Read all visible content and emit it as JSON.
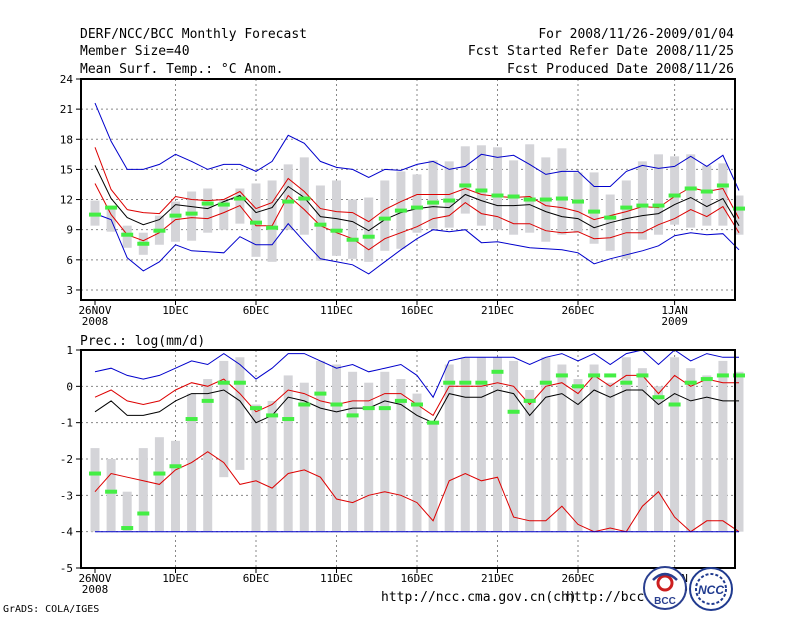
{
  "header": {
    "title": "DERF/NCC/BCC Monthly Forecast",
    "member_size": "Member Size=40",
    "variable": "Mean Surf. Temp.: °C Anom.",
    "period": "For 2008/11/26-2009/01/04",
    "started": "Fcst Started Refer Date 2008/11/25",
    "produced": "Fcst Produced Date 2008/11/26"
  },
  "footer": {
    "grads": "GrADS: COLA/IGES",
    "url1": "http://ncc.cma.gov.cn(ch)",
    "url2": "http://bcc.",
    "logo_bcc": "BCC",
    "logo_ncc": "NCC"
  },
  "colors": {
    "box": "#d4d4d8",
    "median": "#44ee44",
    "mean": "#000000",
    "inner": "#dd0000",
    "outer": "#0000cc",
    "grid": "#888888"
  },
  "chart_data": [
    {
      "type": "box-plot-time-series",
      "title": "Mean Surf. Temp.: °C Anom.",
      "ylim": [
        2,
        24
      ],
      "yticks": [
        3,
        6,
        9,
        12,
        15,
        18,
        21,
        24
      ],
      "x": [
        0,
        39
      ],
      "xticks": [
        {
          "i": 0,
          "label": "26NOV",
          "sub": "2008"
        },
        {
          "i": 5,
          "label": "1DEC",
          "sub": ""
        },
        {
          "i": 10,
          "label": "6DEC",
          "sub": ""
        },
        {
          "i": 15,
          "label": "11DEC",
          "sub": ""
        },
        {
          "i": 20,
          "label": "16DEC",
          "sub": ""
        },
        {
          "i": 25,
          "label": "21DEC",
          "sub": ""
        },
        {
          "i": 30,
          "label": "26DEC",
          "sub": ""
        },
        {
          "i": 36,
          "label": "1JAN",
          "sub": "2009"
        }
      ],
      "series": [
        {
          "name": "outer_max",
          "values": [
            21.6,
            17.8,
            15.0,
            15.0,
            15.5,
            16.5,
            15.8,
            15.0,
            15.5,
            15.5,
            14.8,
            15.8,
            18.4,
            17.6,
            15.8,
            15.2,
            15.0,
            14.2,
            15.0,
            14.9,
            15.5,
            15.8,
            15.0,
            15.3,
            16.5,
            16.2,
            16.4,
            15.5,
            14.5,
            14.8,
            14.8,
            13.3,
            13.3,
            14.8,
            15.4,
            15.1,
            15.3,
            16.3,
            15.3,
            16.4,
            12.9
          ]
        },
        {
          "name": "inner_max",
          "values": [
            17.2,
            13.0,
            11.0,
            10.7,
            10.6,
            12.3,
            12.0,
            11.9,
            12.0,
            12.8,
            11.1,
            11.7,
            14.1,
            12.8,
            11.1,
            10.8,
            10.7,
            9.8,
            11.0,
            11.8,
            12.5,
            12.5,
            12.5,
            13.1,
            12.5,
            12.3,
            12.2,
            12.3,
            11.4,
            11.2,
            10.8,
            10.0,
            10.4,
            10.8,
            11.3,
            11.2,
            12.3,
            13.2,
            12.8,
            13.1,
            10.1
          ]
        },
        {
          "name": "mean",
          "values": [
            15.4,
            12.1,
            10.2,
            9.5,
            10.0,
            11.5,
            11.3,
            11.1,
            11.8,
            12.4,
            10.7,
            11.2,
            13.3,
            12.2,
            10.3,
            10.1,
            9.8,
            8.9,
            10.0,
            10.7,
            11.1,
            11.3,
            11.2,
            12.5,
            11.9,
            11.4,
            11.4,
            11.5,
            10.8,
            10.3,
            10.1,
            9.2,
            9.7,
            10.1,
            10.4,
            10.6,
            11.5,
            12.2,
            11.3,
            12.1,
            9.4
          ]
        },
        {
          "name": "inner_min",
          "values": [
            13.6,
            10.5,
            8.5,
            7.9,
            8.7,
            10.0,
            10.2,
            10.1,
            10.7,
            11.4,
            9.4,
            9.4,
            12.4,
            11.0,
            9.4,
            8.7,
            8.1,
            7.0,
            8.1,
            8.7,
            9.3,
            10.1,
            10.4,
            11.7,
            10.6,
            10.3,
            9.6,
            9.6,
            8.9,
            8.7,
            8.8,
            8.1,
            8.2,
            8.7,
            8.7,
            9.5,
            10.1,
            11.0,
            10.3,
            11.3,
            8.7
          ]
        },
        {
          "name": "outer_min",
          "values": [
            10.6,
            10.0,
            6.2,
            4.9,
            5.8,
            7.5,
            6.9,
            6.8,
            6.7,
            8.3,
            7.5,
            7.5,
            9.6,
            7.8,
            6.1,
            5.8,
            5.5,
            4.6,
            5.8,
            7.0,
            8.1,
            9.0,
            8.8,
            9.0,
            7.7,
            7.8,
            7.5,
            7.2,
            7.1,
            7.0,
            6.7,
            5.6,
            6.1,
            6.5,
            6.9,
            7.4,
            8.4,
            8.7,
            8.5,
            8.6,
            7.0
          ]
        }
      ],
      "boxes": [
        [
          9.4,
          11.9,
          10.5
        ],
        [
          8.8,
          11.1,
          11.2
        ],
        [
          7.2,
          9.4,
          8.5
        ],
        [
          6.5,
          8.7,
          7.6
        ],
        [
          7.5,
          10.4,
          8.9
        ],
        [
          7.8,
          11.8,
          10.4
        ],
        [
          7.9,
          12.8,
          10.6
        ],
        [
          8.7,
          13.1,
          11.6
        ],
        [
          9.0,
          12.0,
          11.5
        ],
        [
          9.6,
          13.1,
          12.1
        ],
        [
          6.3,
          13.6,
          9.7
        ],
        [
          5.8,
          13.9,
          9.2
        ],
        [
          9.0,
          15.5,
          11.8
        ],
        [
          8.5,
          16.2,
          12.1
        ],
        [
          5.9,
          13.4,
          9.5
        ],
        [
          6.4,
          13.9,
          8.9
        ],
        [
          6.1,
          12.0,
          8.0
        ],
        [
          5.8,
          12.2,
          8.3
        ],
        [
          6.9,
          13.9,
          10.1
        ],
        [
          7.1,
          14.8,
          10.9
        ],
        [
          8.7,
          14.5,
          11.2
        ],
        [
          9.1,
          15.9,
          11.7
        ],
        [
          9.2,
          15.8,
          11.9
        ],
        [
          10.6,
          17.3,
          13.4
        ],
        [
          9.4,
          17.4,
          12.9
        ],
        [
          9.0,
          17.2,
          12.4
        ],
        [
          8.5,
          15.9,
          12.3
        ],
        [
          8.7,
          17.5,
          12.0
        ],
        [
          7.8,
          16.2,
          12.0
        ],
        [
          8.5,
          17.1,
          12.1
        ],
        [
          8.7,
          14.7,
          11.8
        ],
        [
          7.6,
          14.7,
          10.8
        ],
        [
          6.9,
          12.5,
          10.2
        ],
        [
          6.1,
          13.9,
          11.2
        ],
        [
          8.0,
          15.8,
          11.4
        ],
        [
          8.5,
          16.5,
          11.4
        ],
        [
          9.5,
          16.3,
          12.4
        ],
        [
          9.2,
          16.5,
          13.1
        ],
        [
          9.4,
          15.4,
          12.8
        ],
        [
          9.4,
          15.6,
          13.4
        ],
        [
          8.5,
          12.4,
          11.1
        ]
      ]
    },
    {
      "type": "box-plot-time-series",
      "title": "Prec.: log(mm/d)",
      "ylim": [
        -5,
        1
      ],
      "yticks": [
        -5,
        -4,
        -3,
        -2,
        -1,
        0,
        1
      ],
      "xticks": [
        {
          "i": 0,
          "label": "26NOV",
          "sub": "2008"
        },
        {
          "i": 5,
          "label": "1DEC",
          "sub": ""
        },
        {
          "i": 10,
          "label": "6DEC",
          "sub": ""
        },
        {
          "i": 15,
          "label": "11DEC",
          "sub": ""
        },
        {
          "i": 20,
          "label": "16DEC",
          "sub": ""
        },
        {
          "i": 25,
          "label": "21DEC",
          "sub": ""
        },
        {
          "i": 30,
          "label": "26DEC",
          "sub": ""
        },
        {
          "i": 36,
          "label": "1JAN",
          "sub": "2009"
        }
      ],
      "series": [
        {
          "name": "outer_max",
          "values": [
            0.4,
            0.5,
            0.3,
            0.2,
            0.3,
            0.5,
            0.7,
            0.6,
            0.9,
            0.6,
            0.2,
            0.5,
            0.9,
            0.9,
            0.7,
            0.5,
            0.6,
            0.4,
            0.5,
            0.6,
            0.3,
            -0.3,
            0.7,
            0.8,
            0.8,
            0.8,
            0.8,
            0.6,
            0.8,
            0.9,
            0.7,
            0.9,
            0.6,
            0.9,
            1.0,
            0.6,
            1.0,
            0.7,
            0.9,
            0.8,
            0.8
          ]
        },
        {
          "name": "inner_max",
          "values": [
            -0.3,
            -0.1,
            -0.4,
            -0.5,
            -0.4,
            -0.1,
            0.1,
            0.0,
            0.2,
            -0.2,
            -0.7,
            -0.5,
            -0.1,
            -0.2,
            -0.4,
            -0.5,
            -0.4,
            -0.4,
            -0.2,
            -0.2,
            -0.5,
            -0.8,
            0.0,
            0.0,
            0.0,
            0.1,
            0.0,
            -0.5,
            0.0,
            0.1,
            -0.2,
            0.3,
            0.0,
            0.3,
            0.3,
            -0.2,
            0.3,
            0.0,
            0.2,
            0.1,
            0.1
          ]
        },
        {
          "name": "mean",
          "values": [
            -0.7,
            -0.4,
            -0.8,
            -0.8,
            -0.7,
            -0.4,
            -0.2,
            -0.2,
            -0.1,
            -0.4,
            -1.0,
            -0.8,
            -0.3,
            -0.4,
            -0.6,
            -0.7,
            -0.6,
            -0.6,
            -0.4,
            -0.5,
            -0.8,
            -1.0,
            -0.2,
            -0.3,
            -0.3,
            -0.1,
            -0.2,
            -0.8,
            -0.3,
            -0.2,
            -0.5,
            -0.1,
            -0.3,
            -0.1,
            -0.1,
            -0.5,
            -0.2,
            -0.4,
            -0.3,
            -0.4,
            -0.4
          ]
        },
        {
          "name": "inner_min",
          "values": [
            -2.9,
            -2.4,
            -2.5,
            -2.6,
            -2.7,
            -2.3,
            -2.1,
            -1.8,
            -2.1,
            -2.7,
            -2.6,
            -2.8,
            -2.4,
            -2.3,
            -2.5,
            -3.1,
            -3.2,
            -3.0,
            -2.9,
            -3.0,
            -3.2,
            -3.7,
            -2.6,
            -2.4,
            -2.6,
            -2.5,
            -3.6,
            -3.7,
            -3.7,
            -3.3,
            -3.8,
            -4.0,
            -3.9,
            -4.0,
            -3.3,
            -2.9,
            -3.6,
            -4.0,
            -3.7,
            -3.7,
            -4.0
          ]
        },
        {
          "name": "outer_min",
          "values": [
            -4.0,
            -4.0,
            -4.0,
            -4.0,
            -4.0,
            -4.0,
            -4.0,
            -4.0,
            -4.0,
            -4.0,
            -4.0,
            -4.0,
            -4.0,
            -4.0,
            -4.0,
            -4.0,
            -4.0,
            -4.0,
            -4.0,
            -4.0,
            -4.0,
            -4.0,
            -4.0,
            -4.0,
            -4.0,
            -4.0,
            -4.0,
            -4.0,
            -4.0,
            -4.0,
            -4.0,
            -4.0,
            -4.0,
            -4.0,
            -4.0,
            -4.0,
            -4.0,
            -4.0,
            -4.0,
            -4.0,
            -4.0
          ]
        }
      ],
      "boxes": [
        [
          -4.0,
          -1.7,
          -2.4
        ],
        [
          -4.0,
          -2.0,
          -2.9
        ],
        [
          -4.0,
          -2.9,
          -3.9
        ],
        [
          -4.0,
          -1.7,
          -3.5
        ],
        [
          -4.0,
          -1.4,
          -2.4
        ],
        [
          -4.0,
          -1.5,
          -2.2
        ],
        [
          -4.0,
          -0.2,
          -0.9
        ],
        [
          -4.0,
          0.2,
          -0.4
        ],
        [
          -2.5,
          0.7,
          0.1
        ],
        [
          -2.3,
          0.8,
          0.1
        ],
        [
          -4.0,
          -0.5,
          -0.6
        ],
        [
          -4.0,
          -0.4,
          -0.8
        ],
        [
          -4.0,
          0.3,
          -0.9
        ],
        [
          -4.0,
          0.1,
          -0.5
        ],
        [
          -4.0,
          0.7,
          -0.2
        ],
        [
          -4.0,
          0.6,
          -0.5
        ],
        [
          -4.0,
          0.4,
          -0.8
        ],
        [
          -4.0,
          0.1,
          -0.6
        ],
        [
          -4.0,
          0.4,
          -0.6
        ],
        [
          -4.0,
          0.2,
          -0.4
        ],
        [
          -4.0,
          -0.2,
          -0.5
        ],
        [
          -4.0,
          -1.0,
          -1.0
        ],
        [
          -4.0,
          0.6,
          0.1
        ],
        [
          -4.0,
          0.8,
          0.1
        ],
        [
          -4.0,
          0.8,
          0.1
        ],
        [
          -4.0,
          0.8,
          0.4
        ],
        [
          -4.0,
          0.7,
          -0.7
        ],
        [
          -4.0,
          -0.1,
          -0.4
        ],
        [
          -4.0,
          0.8,
          0.1
        ],
        [
          -4.0,
          0.6,
          0.3
        ],
        [
          -4.0,
          0.2,
          0.0
        ],
        [
          -4.0,
          0.6,
          0.3
        ],
        [
          -4.0,
          0.1,
          0.3
        ],
        [
          -4.0,
          0.8,
          0.1
        ],
        [
          -4.0,
          0.5,
          0.3
        ],
        [
          -4.0,
          0.0,
          -0.3
        ],
        [
          -4.0,
          0.8,
          -0.5
        ],
        [
          -4.0,
          0.5,
          0.1
        ],
        [
          -4.0,
          0.3,
          0.2
        ],
        [
          -4.0,
          0.7,
          0.3
        ],
        [
          -4.0,
          0.4,
          0.3
        ]
      ]
    }
  ]
}
